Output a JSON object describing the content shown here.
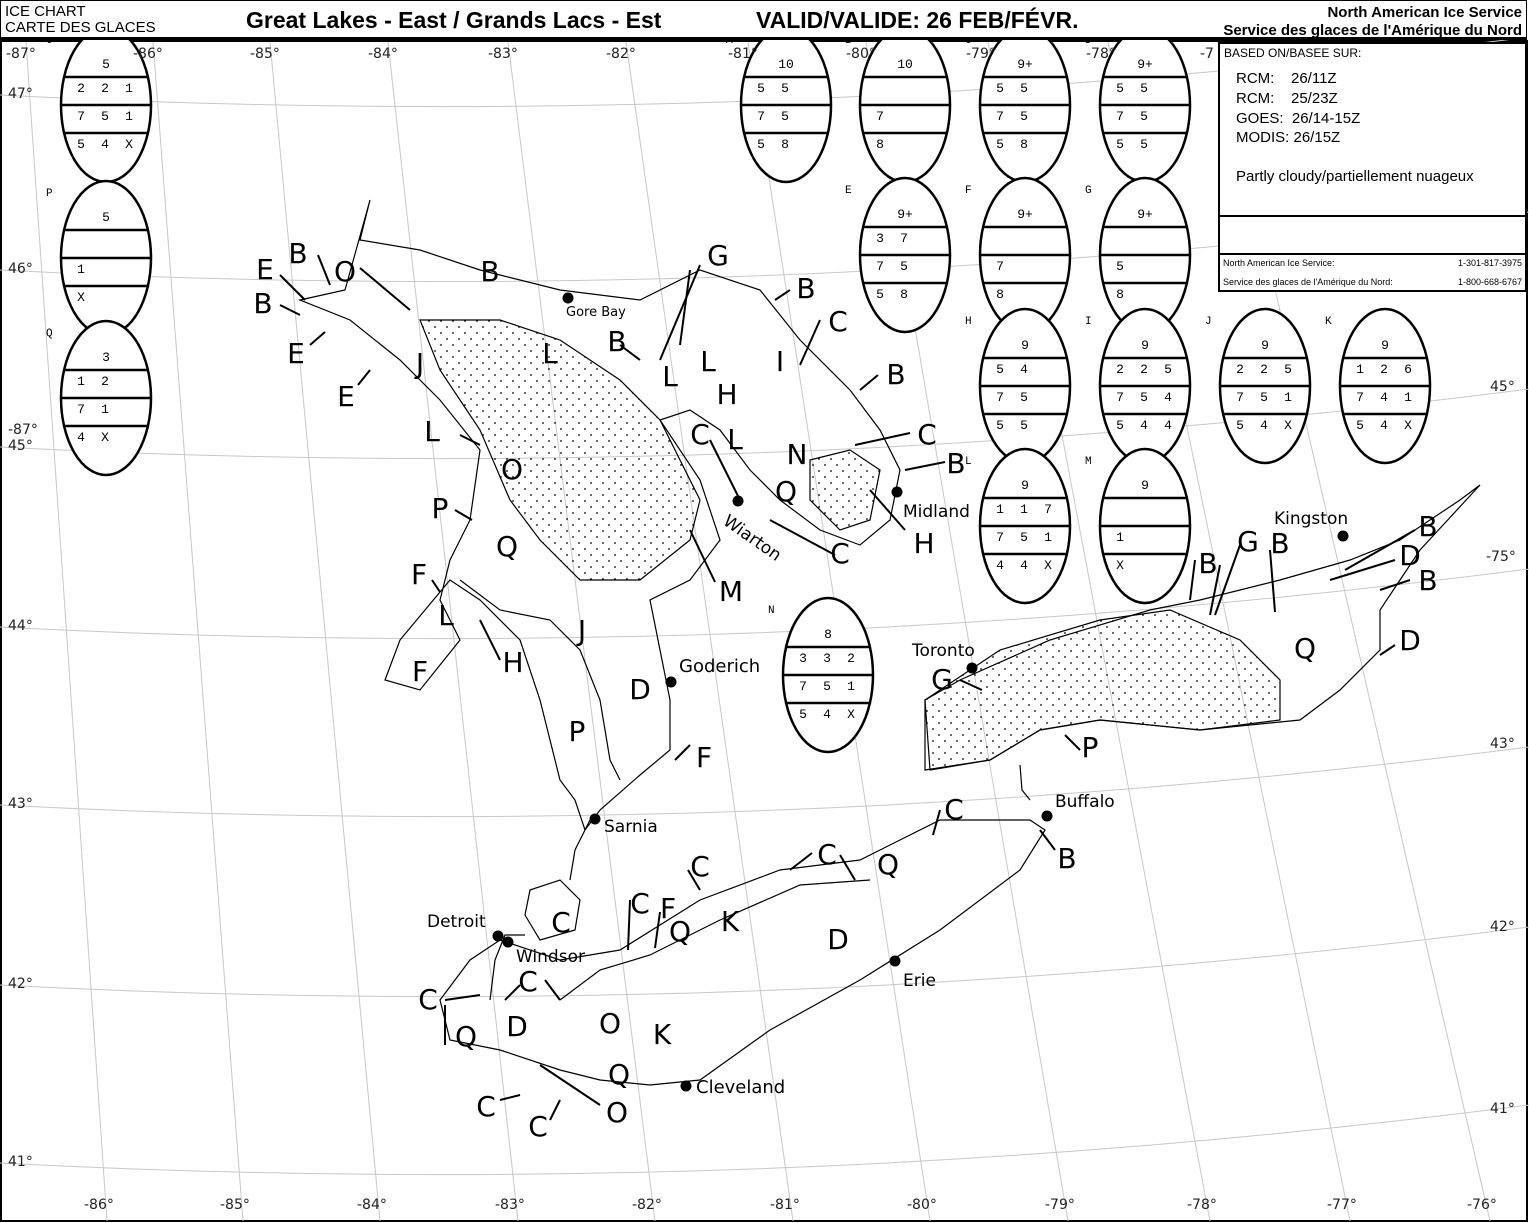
{
  "header": {
    "chart_label_en": "ICE CHART",
    "chart_label_fr": "CARTE DES GLACES",
    "title": "Great Lakes - East / Grands Lacs - Est",
    "valid": "VALID/VALIDE: 26 FEB/FÉVR.",
    "agency_en": "North American Ice Service",
    "agency_fr": "Service des glaces de l'Amérique du Nord"
  },
  "info": {
    "based_on": "BASED ON/BASEE SUR:",
    "sources": [
      "RCM:    26/11Z",
      "RCM:    25/23Z",
      "GOES:  26/14-15Z",
      "MODIS: 26/15Z"
    ],
    "note": "Partly cloudy/partiellement nuageux",
    "contacts": [
      {
        "name": "North American Ice Service:",
        "phone": "1-301-817-3975"
      },
      {
        "name": "Service des glaces de l'Amérique du Nord:",
        "phone": "1-800-668-6767"
      }
    ]
  },
  "graticule": {
    "top_lon": [
      "-87°",
      "-86°",
      "-85°",
      "-84°",
      "-83°",
      "-82°",
      "-81°",
      "-80°",
      "-79°",
      "-78°",
      "-7"
    ],
    "bottom_lon": [
      "-86°",
      "-85°",
      "-84°",
      "-83°",
      "-82°",
      "-81°",
      "-80°",
      "-79°",
      "-78°",
      "-77°",
      "-76°"
    ],
    "left_lat": [
      "47°",
      "46°",
      "-87°",
      "45°",
      "44°",
      "43°",
      "42°",
      "41°"
    ],
    "right_lat": [
      "45°",
      "-75°",
      "43°",
      "42°",
      "41°"
    ]
  },
  "eggs": [
    {
      "id": "O",
      "total": "5",
      "r1": [
        "2",
        "2",
        "1"
      ],
      "r2": [
        "7",
        "5",
        "1"
      ],
      "r3": [
        "5",
        "4",
        "X"
      ]
    },
    {
      "id": "A",
      "total": "10",
      "r1": [
        "5",
        "5"
      ],
      "r2": [
        "7",
        "5"
      ],
      "r3": [
        "5",
        "8"
      ]
    },
    {
      "id": "B",
      "total": "10",
      "r1": [],
      "r2": [
        "7"
      ],
      "r3": [
        "8"
      ]
    },
    {
      "id": "C",
      "total": "9+",
      "r1": [
        "5",
        "5"
      ],
      "r2": [
        "7",
        "5"
      ],
      "r3": [
        "5",
        "8"
      ]
    },
    {
      "id": "D",
      "total": "9+",
      "r1": [
        "5",
        "5"
      ],
      "r2": [
        "7",
        "5"
      ],
      "r3": [
        "5",
        "5"
      ]
    },
    {
      "id": "E",
      "total": "9+",
      "r1": [
        "3",
        "7"
      ],
      "r2": [
        "7",
        "5"
      ],
      "r3": [
        "5",
        "8"
      ]
    },
    {
      "id": "F",
      "total": "9+",
      "r1": [],
      "r2": [
        "7"
      ],
      "r3": [
        "8"
      ]
    },
    {
      "id": "G",
      "total": "9+",
      "r1": [],
      "r2": [
        "5"
      ],
      "r3": [
        "8"
      ]
    },
    {
      "id": "P",
      "total": "5",
      "r1": [],
      "r2": [
        "1"
      ],
      "r3": [
        "X"
      ]
    },
    {
      "id": "Q",
      "total": "3",
      "r1": [
        "1",
        "2"
      ],
      "r2": [
        "7",
        "1"
      ],
      "r3": [
        "4",
        "X"
      ]
    },
    {
      "id": "H",
      "total": "9",
      "r1": [
        "5",
        "4"
      ],
      "r2": [
        "7",
        "5"
      ],
      "r3": [
        "5",
        "5"
      ]
    },
    {
      "id": "I",
      "total": "9",
      "r1": [
        "2",
        "2",
        "5"
      ],
      "r2": [
        "7",
        "5",
        "4"
      ],
      "r3": [
        "5",
        "4",
        "4"
      ]
    },
    {
      "id": "J",
      "total": "9",
      "r1": [
        "2",
        "2",
        "5"
      ],
      "r2": [
        "7",
        "5",
        "1"
      ],
      "r3": [
        "5",
        "4",
        "X"
      ]
    },
    {
      "id": "K",
      "total": "9",
      "r1": [
        "1",
        "2",
        "6"
      ],
      "r2": [
        "7",
        "4",
        "1"
      ],
      "r3": [
        "5",
        "4",
        "X"
      ]
    },
    {
      "id": "L",
      "total": "9",
      "r1": [
        "1",
        "1",
        "7"
      ],
      "r2": [
        "7",
        "5",
        "1"
      ],
      "r3": [
        "4",
        "4",
        "X"
      ]
    },
    {
      "id": "M",
      "total": "9",
      "r1": [],
      "r2": [
        "1"
      ],
      "r3": [
        "X"
      ]
    },
    {
      "id": "N",
      "total": "8",
      "r1": [
        "3",
        "3",
        "2"
      ],
      "r2": [
        "7",
        "5",
        "1"
      ],
      "r3": [
        "5",
        "4",
        "X"
      ]
    }
  ],
  "zone_labels": [
    "E",
    "B",
    "O",
    "B",
    "E",
    "E",
    "B",
    "J",
    "L",
    "B",
    "G",
    "L",
    "L",
    "H",
    "I",
    "B",
    "C",
    "B",
    "C",
    "C",
    "L",
    "N",
    "B",
    "Q",
    "O",
    "L",
    "P",
    "Q",
    "F",
    "L",
    "H",
    "F",
    "J",
    "M",
    "C",
    "H",
    "D",
    "F",
    "P",
    "G",
    "P",
    "Q",
    "D",
    "B",
    "G",
    "B",
    "B",
    "D",
    "B",
    "C",
    "B",
    "C",
    "Q",
    "C",
    "C",
    "F",
    "Q",
    "K",
    "D",
    "C",
    "C",
    "C",
    "Q",
    "D",
    "O",
    "K",
    "Q",
    "C",
    "C",
    "O"
  ],
  "cities": [
    "Gore Bay",
    "Wiarton",
    "Midland",
    "Goderich",
    "Sarnia",
    "Detroit",
    "Windsor",
    "Erie",
    "Cleveland",
    "Toronto",
    "Buffalo",
    "Kingston"
  ],
  "colors": {
    "ink": "#000000",
    "graticule": "#c8c8c8",
    "background": "#ffffff"
  }
}
